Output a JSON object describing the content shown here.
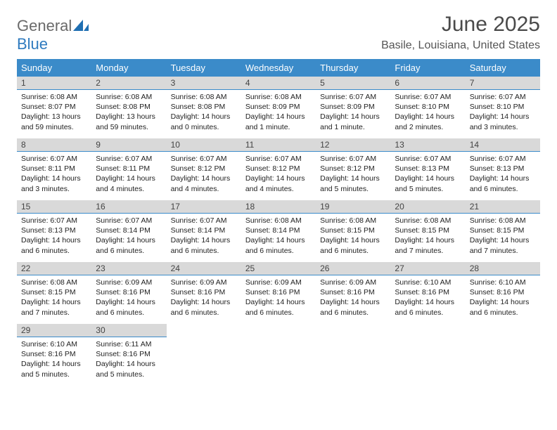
{
  "brand": {
    "part1": "General",
    "part2": "Blue"
  },
  "title": "June 2025",
  "location": "Basile, Louisiana, United States",
  "colors": {
    "header_bg": "#3b8bc9",
    "header_text": "#ffffff",
    "daynum_bg": "#d9d9d9",
    "daynum_border": "#3b8bc9",
    "title_color": "#4a4a4a",
    "location_color": "#555555"
  },
  "weekdays": [
    "Sunday",
    "Monday",
    "Tuesday",
    "Wednesday",
    "Thursday",
    "Friday",
    "Saturday"
  ],
  "weeks": [
    [
      {
        "n": "1",
        "sr": "Sunrise: 6:08 AM",
        "ss": "Sunset: 8:07 PM",
        "dl": "Daylight: 13 hours and 59 minutes."
      },
      {
        "n": "2",
        "sr": "Sunrise: 6:08 AM",
        "ss": "Sunset: 8:08 PM",
        "dl": "Daylight: 13 hours and 59 minutes."
      },
      {
        "n": "3",
        "sr": "Sunrise: 6:08 AM",
        "ss": "Sunset: 8:08 PM",
        "dl": "Daylight: 14 hours and 0 minutes."
      },
      {
        "n": "4",
        "sr": "Sunrise: 6:08 AM",
        "ss": "Sunset: 8:09 PM",
        "dl": "Daylight: 14 hours and 1 minute."
      },
      {
        "n": "5",
        "sr": "Sunrise: 6:07 AM",
        "ss": "Sunset: 8:09 PM",
        "dl": "Daylight: 14 hours and 1 minute."
      },
      {
        "n": "6",
        "sr": "Sunrise: 6:07 AM",
        "ss": "Sunset: 8:10 PM",
        "dl": "Daylight: 14 hours and 2 minutes."
      },
      {
        "n": "7",
        "sr": "Sunrise: 6:07 AM",
        "ss": "Sunset: 8:10 PM",
        "dl": "Daylight: 14 hours and 3 minutes."
      }
    ],
    [
      {
        "n": "8",
        "sr": "Sunrise: 6:07 AM",
        "ss": "Sunset: 8:11 PM",
        "dl": "Daylight: 14 hours and 3 minutes."
      },
      {
        "n": "9",
        "sr": "Sunrise: 6:07 AM",
        "ss": "Sunset: 8:11 PM",
        "dl": "Daylight: 14 hours and 4 minutes."
      },
      {
        "n": "10",
        "sr": "Sunrise: 6:07 AM",
        "ss": "Sunset: 8:12 PM",
        "dl": "Daylight: 14 hours and 4 minutes."
      },
      {
        "n": "11",
        "sr": "Sunrise: 6:07 AM",
        "ss": "Sunset: 8:12 PM",
        "dl": "Daylight: 14 hours and 4 minutes."
      },
      {
        "n": "12",
        "sr": "Sunrise: 6:07 AM",
        "ss": "Sunset: 8:12 PM",
        "dl": "Daylight: 14 hours and 5 minutes."
      },
      {
        "n": "13",
        "sr": "Sunrise: 6:07 AM",
        "ss": "Sunset: 8:13 PM",
        "dl": "Daylight: 14 hours and 5 minutes."
      },
      {
        "n": "14",
        "sr": "Sunrise: 6:07 AM",
        "ss": "Sunset: 8:13 PM",
        "dl": "Daylight: 14 hours and 6 minutes."
      }
    ],
    [
      {
        "n": "15",
        "sr": "Sunrise: 6:07 AM",
        "ss": "Sunset: 8:13 PM",
        "dl": "Daylight: 14 hours and 6 minutes."
      },
      {
        "n": "16",
        "sr": "Sunrise: 6:07 AM",
        "ss": "Sunset: 8:14 PM",
        "dl": "Daylight: 14 hours and 6 minutes."
      },
      {
        "n": "17",
        "sr": "Sunrise: 6:07 AM",
        "ss": "Sunset: 8:14 PM",
        "dl": "Daylight: 14 hours and 6 minutes."
      },
      {
        "n": "18",
        "sr": "Sunrise: 6:08 AM",
        "ss": "Sunset: 8:14 PM",
        "dl": "Daylight: 14 hours and 6 minutes."
      },
      {
        "n": "19",
        "sr": "Sunrise: 6:08 AM",
        "ss": "Sunset: 8:15 PM",
        "dl": "Daylight: 14 hours and 6 minutes."
      },
      {
        "n": "20",
        "sr": "Sunrise: 6:08 AM",
        "ss": "Sunset: 8:15 PM",
        "dl": "Daylight: 14 hours and 7 minutes."
      },
      {
        "n": "21",
        "sr": "Sunrise: 6:08 AM",
        "ss": "Sunset: 8:15 PM",
        "dl": "Daylight: 14 hours and 7 minutes."
      }
    ],
    [
      {
        "n": "22",
        "sr": "Sunrise: 6:08 AM",
        "ss": "Sunset: 8:15 PM",
        "dl": "Daylight: 14 hours and 7 minutes."
      },
      {
        "n": "23",
        "sr": "Sunrise: 6:09 AM",
        "ss": "Sunset: 8:16 PM",
        "dl": "Daylight: 14 hours and 6 minutes."
      },
      {
        "n": "24",
        "sr": "Sunrise: 6:09 AM",
        "ss": "Sunset: 8:16 PM",
        "dl": "Daylight: 14 hours and 6 minutes."
      },
      {
        "n": "25",
        "sr": "Sunrise: 6:09 AM",
        "ss": "Sunset: 8:16 PM",
        "dl": "Daylight: 14 hours and 6 minutes."
      },
      {
        "n": "26",
        "sr": "Sunrise: 6:09 AM",
        "ss": "Sunset: 8:16 PM",
        "dl": "Daylight: 14 hours and 6 minutes."
      },
      {
        "n": "27",
        "sr": "Sunrise: 6:10 AM",
        "ss": "Sunset: 8:16 PM",
        "dl": "Daylight: 14 hours and 6 minutes."
      },
      {
        "n": "28",
        "sr": "Sunrise: 6:10 AM",
        "ss": "Sunset: 8:16 PM",
        "dl": "Daylight: 14 hours and 6 minutes."
      }
    ],
    [
      {
        "n": "29",
        "sr": "Sunrise: 6:10 AM",
        "ss": "Sunset: 8:16 PM",
        "dl": "Daylight: 14 hours and 5 minutes."
      },
      {
        "n": "30",
        "sr": "Sunrise: 6:11 AM",
        "ss": "Sunset: 8:16 PM",
        "dl": "Daylight: 14 hours and 5 minutes."
      },
      null,
      null,
      null,
      null,
      null
    ]
  ]
}
